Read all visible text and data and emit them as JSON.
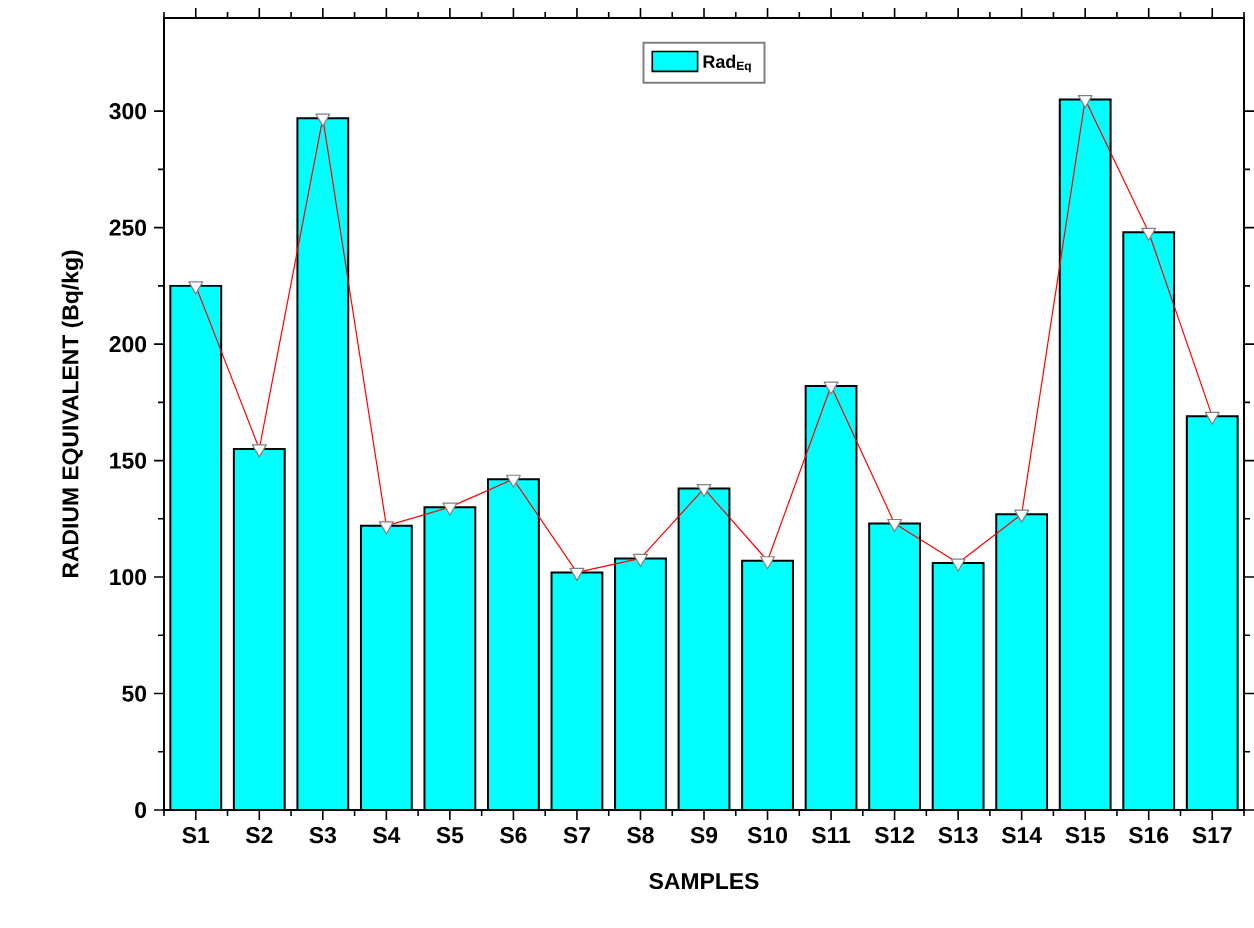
{
  "chart_data": {
    "type": "bar",
    "xlabel": "SAMPLES",
    "ylabel": "RADIUM EQUIVALENT (Bq/kg)",
    "categories": [
      "S1",
      "S2",
      "S3",
      "S4",
      "S5",
      "S6",
      "S7",
      "S8",
      "S9",
      "S10",
      "S11",
      "S12",
      "S13",
      "S14",
      "S15",
      "S16",
      "S17"
    ],
    "series": [
      {
        "name": "Rad$_{Eq}$",
        "color": "#00ffff",
        "values": [
          225,
          155,
          297,
          122,
          130,
          142,
          102,
          108,
          138,
          107,
          182,
          123,
          106,
          127,
          305,
          248,
          169
        ]
      },
      {
        "type": "line",
        "color": "#ff0000",
        "marker": "triangle",
        "values": [
          225,
          155,
          297,
          122,
          130,
          142,
          102,
          108,
          138,
          107,
          182,
          123,
          106,
          127,
          305,
          248,
          169
        ]
      }
    ],
    "ylim": [
      0,
      340
    ],
    "yticks": [
      0,
      50,
      100,
      150,
      200,
      250,
      300
    ],
    "grid": false,
    "legend": "top"
  }
}
